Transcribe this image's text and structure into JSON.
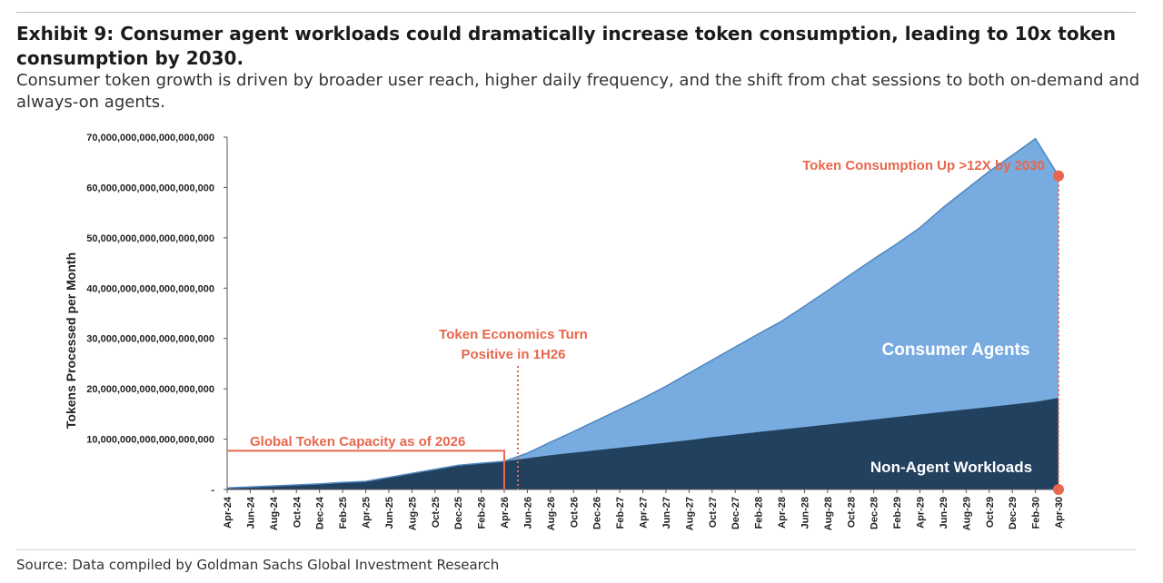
{
  "header": {
    "title": "Exhibit 9: Consumer agent workloads could dramatically increase token consumption, leading to 10x token consumption by 2030.",
    "subtitle": "Consumer token growth is driven by broader user reach, higher daily frequency, and the shift from chat sessions to both on-demand and always-on agents."
  },
  "footer": {
    "source": "Source: Data compiled by Goldman Sachs Global Investment Research"
  },
  "chart_data": {
    "type": "area",
    "stacked": true,
    "ylabel": "Tokens Processed per Month",
    "ylim": [
      0,
      70000000000000000000
    ],
    "yticks": [
      {
        "value": 0,
        "label": "-"
      },
      {
        "value": 10000000000000000000,
        "label": "10,000,000,000,000,000,000"
      },
      {
        "value": 20000000000000000000,
        "label": "20,000,000,000,000,000,000"
      },
      {
        "value": 30000000000000000000,
        "label": "30,000,000,000,000,000,000"
      },
      {
        "value": 40000000000000000000,
        "label": "40,000,000,000,000,000,000"
      },
      {
        "value": 50000000000000000000,
        "label": "50,000,000,000,000,000,000"
      },
      {
        "value": 60000000000000000000,
        "label": "60,000,000,000,000,000,000"
      },
      {
        "value": 70000000000000000000,
        "label": "70,000,000,000,000,000,000"
      }
    ],
    "categories": [
      "Apr-24",
      "Jun-24",
      "Aug-24",
      "Oct-24",
      "Dec-24",
      "Feb-25",
      "Apr-25",
      "Jun-25",
      "Aug-25",
      "Oct-25",
      "Dec-25",
      "Feb-26",
      "Apr-26",
      "Jun-26",
      "Aug-26",
      "Oct-26",
      "Dec-26",
      "Feb-27",
      "Apr-27",
      "Jun-27",
      "Aug-27",
      "Oct-27",
      "Dec-27",
      "Feb-28",
      "Apr-28",
      "Jun-28",
      "Aug-28",
      "Oct-28",
      "Dec-28",
      "Feb-29",
      "Apr-29",
      "Jun-29",
      "Aug-29",
      "Oct-29",
      "Dec-29",
      "Feb-30",
      "Apr-30"
    ],
    "series": [
      {
        "name": "Non-Agent Workloads",
        "color": "#22415f",
        "values": [
          3e+17,
          5e+17,
          7e+17,
          9e+17,
          1.1e+18,
          1.4e+18,
          1.6e+18,
          2.4e+18,
          3.2e+18,
          4e+18,
          4.8e+18,
          5.2e+18,
          5.6e+18,
          6.2e+18,
          6.8e+18,
          7.3e+18,
          7.8e+18,
          8.3e+18,
          8.8e+18,
          9.3e+18,
          9.8e+18,
          1.04e+19,
          1.09e+19,
          1.14e+19,
          1.19e+19,
          1.24e+19,
          1.29e+19,
          1.34e+19,
          1.39e+19,
          1.44e+19,
          1.49e+19,
          1.54e+19,
          1.59e+19,
          1.64e+19,
          1.69e+19,
          1.74e+19,
          1.82e+19
        ]
      },
      {
        "name": "Consumer Agents",
        "color": "#78ace0",
        "values": [
          0,
          0,
          0,
          0,
          0,
          0,
          0,
          0,
          0,
          0,
          0,
          0,
          0,
          1e+18,
          2.6e+18,
          4.2e+18,
          5.9e+18,
          7.6e+18,
          9.3e+18,
          1.12e+19,
          1.33e+19,
          1.53e+19,
          1.74e+19,
          1.95e+19,
          2.15e+19,
          2.4e+19,
          2.66e+19,
          2.93e+19,
          3.19e+19,
          3.44e+19,
          3.71e+19,
          4.06e+19,
          4.37e+19,
          4.68e+19,
          4.95e+19,
          5.23e+19,
          4.41e+19
        ]
      }
    ],
    "annotations": {
      "capacity": {
        "label": "Global Token Capacity as of 2026",
        "value": 7.7e+18,
        "through": "Apr-26"
      },
      "economics": {
        "label_line1": "Token Economics Turn",
        "label_line2": "Positive in 1H26",
        "at": "Apr-26"
      },
      "growth": {
        "label": "Token Consumption Up >12X by 2030",
        "at": "Apr-30"
      },
      "consumer_label": "Consumer Agents",
      "nonagent_label": "Non-Agent Workloads"
    },
    "annotation_color": "#e8674d",
    "grid": false,
    "legend": "none"
  }
}
